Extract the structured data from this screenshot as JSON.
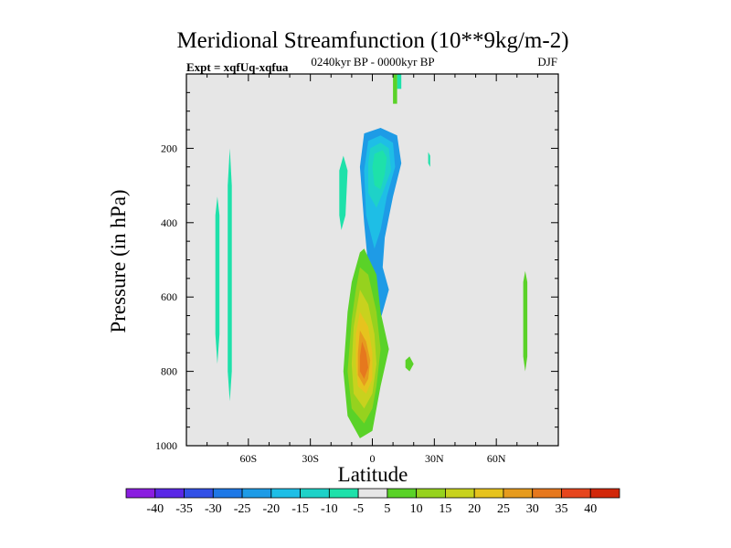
{
  "chart_data": {
    "type": "heatmap",
    "title": "Meridional Streamfunction (10**9kg/m-2)",
    "left_subtitle": "Expt = xqfUq-xqfua",
    "center_subtitle": "0240kyr BP - 0000kyr BP",
    "right_subtitle": "DJF",
    "xlabel": "Latitude",
    "ylabel": "Pressure (in hPa)",
    "xlim": [
      -90,
      90
    ],
    "ylim": [
      1000,
      0
    ],
    "x_ticks": [
      {
        "value": -60,
        "label": "60S"
      },
      {
        "value": -30,
        "label": "30S"
      },
      {
        "value": 0,
        "label": "0"
      },
      {
        "value": 30,
        "label": "30N"
      },
      {
        "value": 60,
        "label": "60N"
      }
    ],
    "y_ticks": [
      {
        "value": 200,
        "label": "200"
      },
      {
        "value": 400,
        "label": "400"
      },
      {
        "value": 600,
        "label": "600"
      },
      {
        "value": 800,
        "label": "800"
      },
      {
        "value": 1000,
        "label": "1000"
      }
    ],
    "background_color": "#e6e6e6",
    "colorbar": {
      "labels": [
        "-40",
        "-35",
        "-30",
        "-25",
        "-20",
        "-15",
        "-10",
        "-5",
        "5",
        "10",
        "15",
        "20",
        "25",
        "30",
        "35",
        "40"
      ],
      "colors": [
        "#8a1ee0",
        "#5a28e6",
        "#3250e6",
        "#1e78e6",
        "#1e9be6",
        "#1ebee6",
        "#1ed2c8",
        "#1ee1aa",
        "#e6e6e6",
        "#5ad228",
        "#96d21e",
        "#c8d21e",
        "#e6c31e",
        "#e69b1e",
        "#e6781e",
        "#e6461e",
        "#d2280a"
      ]
    },
    "regions": [
      {
        "name": "negative-core-upper",
        "level": -25,
        "points": [
          [
            -4,
            160
          ],
          [
            4,
            145
          ],
          [
            12,
            165
          ],
          [
            14,
            240
          ],
          [
            10,
            330
          ],
          [
            6,
            440
          ],
          [
            5,
            520
          ],
          [
            8,
            580
          ],
          [
            4,
            660
          ],
          [
            0,
            640
          ],
          [
            -2,
            520
          ],
          [
            -4,
            400
          ],
          [
            -6,
            250
          ]
        ]
      },
      {
        "name": "negative-core-upper",
        "level": -20,
        "points": [
          [
            -2,
            180
          ],
          [
            4,
            165
          ],
          [
            10,
            185
          ],
          [
            11,
            250
          ],
          [
            7,
            330
          ],
          [
            4,
            420
          ],
          [
            1,
            470
          ],
          [
            -3,
            380
          ],
          [
            -4,
            260
          ]
        ]
      },
      {
        "name": "negative-core-upper",
        "level": -15,
        "points": [
          [
            -1,
            200
          ],
          [
            4,
            185
          ],
          [
            8,
            200
          ],
          [
            9,
            260
          ],
          [
            5,
            320
          ],
          [
            2,
            360
          ],
          [
            -2,
            320
          ],
          [
            -2,
            240
          ]
        ]
      },
      {
        "name": "negative-core-upper",
        "level": -10,
        "points": [
          [
            1,
            215
          ],
          [
            5,
            205
          ],
          [
            7,
            225
          ],
          [
            6,
            270
          ],
          [
            4,
            310
          ],
          [
            1,
            300
          ],
          [
            0,
            250
          ]
        ]
      },
      {
        "name": "negative-core-upper",
        "level": -5,
        "points": [
          [
            2,
            225
          ],
          [
            5,
            220
          ],
          [
            6,
            245
          ],
          [
            4,
            285
          ],
          [
            2,
            290
          ],
          [
            1,
            260
          ]
        ]
      },
      {
        "name": "negative-band-south",
        "level": -5,
        "points": [
          [
            -76,
            380
          ],
          [
            -75,
            330
          ],
          [
            -74,
            380
          ],
          [
            -74,
            700
          ],
          [
            -75,
            780
          ],
          [
            -76,
            700
          ]
        ]
      },
      {
        "name": "negative-band-south",
        "level": -5,
        "points": [
          [
            -70,
            300
          ],
          [
            -69,
            200
          ],
          [
            -68,
            300
          ],
          [
            -68,
            800
          ],
          [
            -69,
            880
          ],
          [
            -70,
            800
          ]
        ]
      },
      {
        "name": "negative-patch-mid",
        "level": -5,
        "points": [
          [
            -16,
            260
          ],
          [
            -14,
            220
          ],
          [
            -12,
            260
          ],
          [
            -13,
            380
          ],
          [
            -15,
            420
          ],
          [
            -16,
            380
          ]
        ]
      },
      {
        "name": "negative-patch-top",
        "level": -5,
        "points": [
          [
            12,
            40
          ],
          [
            12,
            0
          ],
          [
            14,
            0
          ],
          [
            14,
            40
          ]
        ]
      },
      {
        "name": "negative-patch-top",
        "level": -5,
        "points": [
          [
            27,
            240
          ],
          [
            27,
            210
          ],
          [
            28,
            220
          ],
          [
            28,
            250
          ]
        ]
      },
      {
        "name": "positive-core-lower",
        "level": 5,
        "points": [
          [
            -6,
            480
          ],
          [
            -4,
            470
          ],
          [
            2,
            540
          ],
          [
            4,
            640
          ],
          [
            8,
            740
          ],
          [
            4,
            840
          ],
          [
            2,
            900
          ],
          [
            0,
            960
          ],
          [
            -6,
            980
          ],
          [
            -12,
            920
          ],
          [
            -14,
            800
          ],
          [
            -12,
            640
          ],
          [
            -10,
            560
          ]
        ]
      },
      {
        "name": "positive-core-lower",
        "level": 10,
        "points": [
          [
            -6,
            520
          ],
          [
            -2,
            540
          ],
          [
            2,
            640
          ],
          [
            4,
            740
          ],
          [
            2,
            840
          ],
          [
            0,
            900
          ],
          [
            -4,
            940
          ],
          [
            -10,
            900
          ],
          [
            -12,
            800
          ],
          [
            -10,
            660
          ],
          [
            -8,
            580
          ]
        ]
      },
      {
        "name": "positive-core-lower",
        "level": 15,
        "points": [
          [
            -6,
            580
          ],
          [
            -2,
            620
          ],
          [
            1,
            700
          ],
          [
            2,
            780
          ],
          [
            0,
            860
          ],
          [
            -4,
            900
          ],
          [
            -9,
            860
          ],
          [
            -10,
            780
          ],
          [
            -9,
            680
          ]
        ]
      },
      {
        "name": "positive-core-lower",
        "level": 20,
        "points": [
          [
            -6,
            640
          ],
          [
            -2,
            680
          ],
          [
            0,
            750
          ],
          [
            0,
            820
          ],
          [
            -3,
            860
          ],
          [
            -7,
            840
          ],
          [
            -8,
            780
          ],
          [
            -8,
            700
          ]
        ]
      },
      {
        "name": "positive-core-lower",
        "level": 25,
        "points": [
          [
            -6,
            690
          ],
          [
            -3,
            720
          ],
          [
            -1,
            770
          ],
          [
            -2,
            820
          ],
          [
            -4,
            840
          ],
          [
            -7,
            810
          ],
          [
            -7,
            750
          ]
        ]
      },
      {
        "name": "positive-core-lower",
        "level": 30,
        "points": [
          [
            -5,
            720
          ],
          [
            -3,
            750
          ],
          [
            -2,
            790
          ],
          [
            -4,
            820
          ],
          [
            -6,
            800
          ],
          [
            -6,
            760
          ]
        ]
      },
      {
        "name": "positive-patch-north",
        "level": 5,
        "points": [
          [
            73,
            560
          ],
          [
            74,
            530
          ],
          [
            75,
            560
          ],
          [
            75,
            760
          ],
          [
            74,
            800
          ],
          [
            73,
            760
          ]
        ]
      },
      {
        "name": "positive-patch-north",
        "level": 5,
        "points": [
          [
            16,
            770
          ],
          [
            18,
            760
          ],
          [
            20,
            780
          ],
          [
            18,
            800
          ],
          [
            16,
            790
          ]
        ]
      },
      {
        "name": "positive-patch-top",
        "level": 5,
        "points": [
          [
            10,
            80
          ],
          [
            10,
            0
          ],
          [
            12,
            0
          ],
          [
            12,
            80
          ]
        ]
      }
    ]
  }
}
